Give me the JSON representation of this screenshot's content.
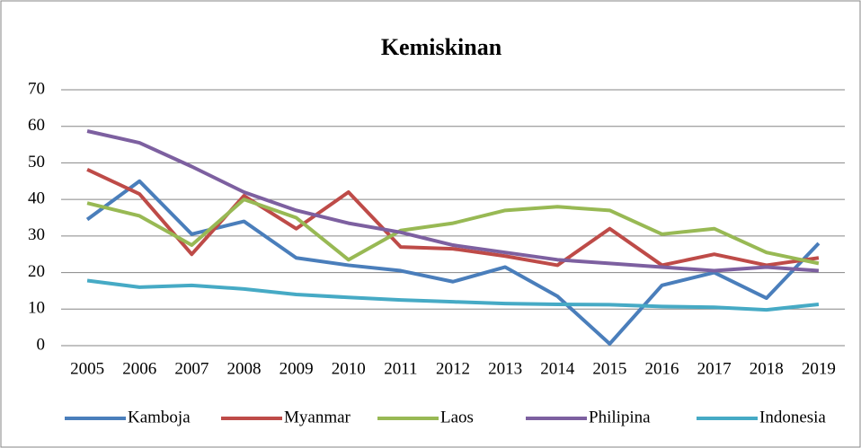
{
  "chart_data": {
    "type": "line",
    "title": "Kemiskinan",
    "categories": [
      "2005",
      "2006",
      "2007",
      "2008",
      "2009",
      "2010",
      "2011",
      "2012",
      "2013",
      "2014",
      "2015",
      "2016",
      "2017",
      "2018",
      "2019"
    ],
    "series": [
      {
        "name": "Kamboja",
        "color": "#4a7ebb",
        "values": [
          34.5,
          45,
          30.5,
          34,
          24,
          22,
          20.5,
          17.5,
          21.5,
          13.5,
          0.5,
          16.5,
          20,
          13,
          28
        ]
      },
      {
        "name": "Myanmar",
        "color": "#be4b48",
        "values": [
          48.2,
          41.5,
          25,
          41,
          32,
          42,
          27,
          26.5,
          24.5,
          22,
          32,
          22,
          25,
          22,
          24
        ]
      },
      {
        "name": "Laos",
        "color": "#98b954",
        "values": [
          39,
          35.5,
          27.5,
          40,
          35,
          23.5,
          31.5,
          33.5,
          37,
          38,
          37,
          30.5,
          32,
          25.5,
          22.5
        ]
      },
      {
        "name": "Philipina",
        "color": "#7d60a0",
        "values": [
          58.7,
          55.5,
          49,
          42,
          37,
          33.5,
          31,
          27.5,
          25.5,
          23.5,
          22.5,
          21.5,
          20.5,
          21.5,
          20.5
        ]
      },
      {
        "name": "Indonesia",
        "color": "#46aac5",
        "values": [
          17.8,
          16,
          16.5,
          15.5,
          14,
          13.2,
          12.5,
          12,
          11.5,
          11.3,
          11.2,
          10.7,
          10.5,
          9.8,
          11.3
        ]
      }
    ],
    "ylim": [
      0,
      70
    ],
    "yticks": [
      0,
      10,
      20,
      30,
      40,
      50,
      60,
      70
    ],
    "grid": true,
    "legend": "bottom"
  }
}
